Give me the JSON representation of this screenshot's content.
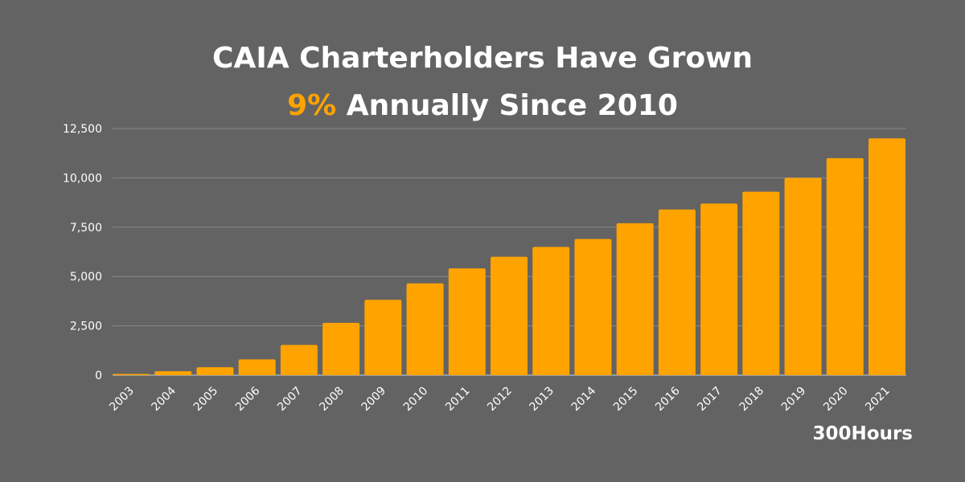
{
  "title": {
    "line1": "CAIA Charterholders Have Grown",
    "highlight": "9%",
    "line2_rest": " Annually Since 2010"
  },
  "brand": "300Hours",
  "colors": {
    "background": "#636363",
    "bar": "#FFA300",
    "highlight": "#FFA300",
    "grid": "#8a8a8a",
    "text": "#ffffff"
  },
  "chart_data": {
    "type": "bar",
    "title": "CAIA Charterholders Have Grown 9% Annually Since 2010",
    "categories": [
      "2003",
      "2004",
      "2005",
      "2006",
      "2007",
      "2008",
      "2009",
      "2010",
      "2011",
      "2012",
      "2013",
      "2014",
      "2015",
      "2016",
      "2017",
      "2018",
      "2019",
      "2020",
      "2021"
    ],
    "values": [
      60,
      200,
      400,
      800,
      1530,
      2650,
      3820,
      4650,
      5410,
      6000,
      6500,
      6900,
      7700,
      8400,
      8700,
      9300,
      10000,
      11000,
      12000
    ],
    "ylim": [
      0,
      12500
    ],
    "yticks": [
      0,
      2500,
      5000,
      7500,
      10000,
      12500
    ],
    "ytick_labels": [
      "0",
      "2,500",
      "5,000",
      "7,500",
      "10,000",
      "12,500"
    ],
    "grid": true,
    "xlabel": "",
    "ylabel": ""
  }
}
